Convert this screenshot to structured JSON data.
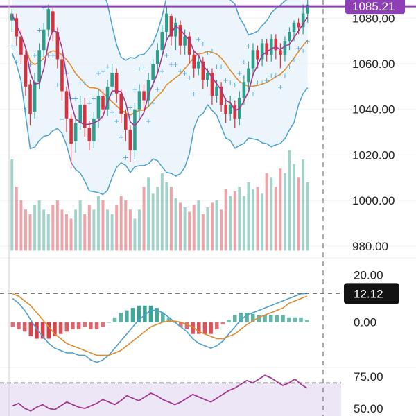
{
  "chart_data": [
    {
      "type": "candlestick",
      "panel": "price",
      "y_axis": {
        "ticks": [
          1080.0,
          1060.0,
          1040.0,
          1020.0,
          1000.0,
          980.0
        ],
        "ylim": [
          976,
          1088
        ]
      },
      "horizontal_line": {
        "value": 1085.21,
        "label": "1085.21",
        "color": "#8e3fb8"
      },
      "colors": {
        "up": "#2e9e8c",
        "down": "#d8323c",
        "bb_line": "#4a9fd0",
        "bb_fill": "#e7f3fb",
        "ma_slow": "#e08a2c",
        "ma_fast": "#a3378f",
        "sar": "#4a9fd0"
      },
      "candles": [
        [
          1079,
          1082,
          1074,
          1084
        ],
        [
          1080,
          1072,
          1068,
          1082
        ],
        [
          1072,
          1064,
          1060,
          1075
        ],
        [
          1064,
          1050,
          1046,
          1066
        ],
        [
          1051,
          1038,
          1033,
          1053
        ],
        [
          1039,
          1052,
          1036,
          1056
        ],
        [
          1052,
          1066,
          1049,
          1069
        ],
        [
          1066,
          1075,
          1063,
          1078
        ],
        [
          1075,
          1084,
          1072,
          1086
        ],
        [
          1083,
          1074,
          1070,
          1085
        ],
        [
          1074,
          1062,
          1058,
          1076
        ],
        [
          1062,
          1048,
          1044,
          1064
        ],
        [
          1048,
          1036,
          1030,
          1050
        ],
        [
          1036,
          1025,
          1014,
          1038
        ],
        [
          1026,
          1034,
          1021,
          1037
        ],
        [
          1034,
          1042,
          1031,
          1046
        ],
        [
          1042,
          1032,
          1028,
          1045
        ],
        [
          1032,
          1026,
          1022,
          1035
        ],
        [
          1026,
          1036,
          1023,
          1039
        ],
        [
          1036,
          1046,
          1032,
          1049
        ],
        [
          1046,
          1040,
          1036,
          1049
        ],
        [
          1040,
          1050,
          1037,
          1053
        ],
        [
          1050,
          1056,
          1046,
          1060
        ],
        [
          1056,
          1047,
          1043,
          1058
        ],
        [
          1047,
          1038,
          1034,
          1049
        ],
        [
          1038,
          1031,
          1026,
          1040
        ],
        [
          1031,
          1022,
          1017,
          1033
        ],
        [
          1022,
          1040,
          1018,
          1043
        ],
        [
          1040,
          1048,
          1036,
          1051
        ],
        [
          1048,
          1044,
          1040,
          1051
        ],
        [
          1044,
          1053,
          1041,
          1056
        ],
        [
          1053,
          1060,
          1050,
          1062
        ],
        [
          1060,
          1066,
          1057,
          1069
        ],
        [
          1066,
          1074,
          1063,
          1077
        ],
        [
          1074,
          1082,
          1071,
          1085
        ],
        [
          1081,
          1072,
          1068,
          1082
        ],
        [
          1072,
          1078,
          1066,
          1080
        ],
        [
          1077,
          1068,
          1064,
          1079
        ],
        [
          1068,
          1072,
          1064,
          1075
        ],
        [
          1072,
          1064,
          1060,
          1074
        ],
        [
          1064,
          1058,
          1054,
          1066
        ],
        [
          1058,
          1061,
          1055,
          1063
        ],
        [
          1061,
          1053,
          1049,
          1063
        ],
        [
          1053,
          1056,
          1050,
          1058
        ],
        [
          1056,
          1046,
          1042,
          1058
        ],
        [
          1046,
          1050,
          1043,
          1053
        ],
        [
          1050,
          1042,
          1039,
          1052
        ],
        [
          1042,
          1038,
          1034,
          1045
        ],
        [
          1038,
          1042,
          1035,
          1046
        ],
        [
          1042,
          1036,
          1032,
          1044
        ],
        [
          1036,
          1045,
          1033,
          1048
        ],
        [
          1045,
          1052,
          1042,
          1055
        ],
        [
          1052,
          1058,
          1049,
          1061
        ],
        [
          1058,
          1066,
          1055,
          1069
        ],
        [
          1066,
          1062,
          1058,
          1068
        ],
        [
          1062,
          1069,
          1059,
          1071
        ],
        [
          1069,
          1064,
          1061,
          1071
        ],
        [
          1064,
          1071,
          1061,
          1073
        ],
        [
          1071,
          1066,
          1062,
          1073
        ],
        [
          1066,
          1064,
          1058,
          1069
        ],
        [
          1064,
          1070,
          1061,
          1072
        ],
        [
          1070,
          1074,
          1066,
          1076
        ],
        [
          1074,
          1078,
          1070,
          1079
        ],
        [
          1078,
          1076,
          1073,
          1080
        ],
        [
          1076,
          1082,
          1073,
          1086
        ],
        [
          1082,
          1086,
          1078,
          1088
        ]
      ],
      "volume": [
        1018,
        1006,
        1000,
        996,
        994,
        998,
        1000,
        996,
        994,
        998,
        1000,
        996,
        994,
        992,
        996,
        1000,
        994,
        998,
        996,
        1002,
        1000,
        996,
        994,
        998,
        1002,
        1000,
        996,
        992,
        996,
        1006,
        1010,
        1003,
        1006,
        1012,
        1008,
        1006,
        1001,
        999,
        997,
        995,
        998,
        1000,
        994,
        997,
        999,
        1000,
        996,
        1005,
        1002,
        1004,
        1006,
        1002,
        1008,
        1005,
        1006,
        1003,
        1012,
        1010,
        1006,
        1014,
        1012,
        1022,
        1016,
        1010,
        1018,
        1008
      ]
    },
    {
      "type": "macd",
      "panel": "macd",
      "y_axis": {
        "ticks": [
          20.0,
          0.0
        ],
        "ylim": [
          -18,
          26
        ]
      },
      "current_value": {
        "value": 12.12,
        "label": "12.12"
      },
      "colors": {
        "macd": "#4a9fd0",
        "signal": "#e08a2c",
        "hist_up": "#2e9e8c",
        "hist_down": "#d8323c"
      },
      "macd": [
        10,
        8,
        5,
        1,
        -3,
        -6,
        -9,
        -11,
        -12,
        -13,
        -13,
        -14,
        -14,
        -16,
        -17,
        -16,
        -14,
        -11,
        -8,
        -5,
        -2,
        1,
        3,
        5,
        5,
        4,
        2,
        0,
        -2,
        -4,
        -7,
        -9,
        -10,
        -11,
        -10,
        -8,
        -5,
        -2,
        1,
        3,
        4,
        5,
        6,
        7,
        8,
        9,
        10,
        11,
        12,
        12.12
      ],
      "signal": [
        12,
        11,
        9,
        7,
        4,
        1,
        -2,
        -5,
        -7,
        -9,
        -10,
        -11,
        -12,
        -13,
        -14,
        -14,
        -14,
        -13,
        -12,
        -10,
        -8,
        -6,
        -4,
        -2,
        -1,
        0,
        0.5,
        0.4,
        0,
        -1,
        -2,
        -4,
        -5,
        -6,
        -7,
        -7,
        -6,
        -5,
        -3,
        -1,
        0.5,
        2,
        3,
        4,
        5,
        6,
        8,
        9,
        10,
        11
      ],
      "histogram": [
        -2,
        -3,
        -4,
        -6,
        -7,
        -7,
        -7,
        -6,
        -5,
        -4,
        -3,
        -3,
        -2,
        -3,
        -3,
        -2,
        0,
        2,
        4,
        5,
        6,
        7,
        7,
        7,
        6,
        4,
        2,
        0,
        -2,
        -3,
        -5,
        -5,
        -5,
        -5,
        -3,
        -1,
        1,
        3,
        4,
        4,
        3.5,
        3,
        3,
        3,
        3,
        3,
        2,
        2,
        2,
        1
      ]
    },
    {
      "type": "line",
      "panel": "rsi",
      "y_axis": {
        "ticks": [
          75.0,
          50.0
        ],
        "ylim": [
          44,
          80
        ]
      },
      "colors": {
        "line": "#a3378f",
        "fill": "#ece6f7",
        "threshold": "#555555"
      },
      "threshold": 70,
      "values": [
        52,
        54,
        50,
        48,
        51,
        53,
        50,
        49,
        52,
        55,
        53,
        51,
        50,
        52,
        54,
        57,
        55,
        53,
        56,
        60,
        58,
        56,
        59,
        62,
        60,
        57,
        55,
        53,
        55,
        58,
        61,
        59,
        57,
        55,
        58,
        61,
        64,
        66,
        69,
        72,
        70,
        73,
        76,
        74,
        71,
        68,
        70,
        73,
        69,
        66
      ]
    }
  ]
}
